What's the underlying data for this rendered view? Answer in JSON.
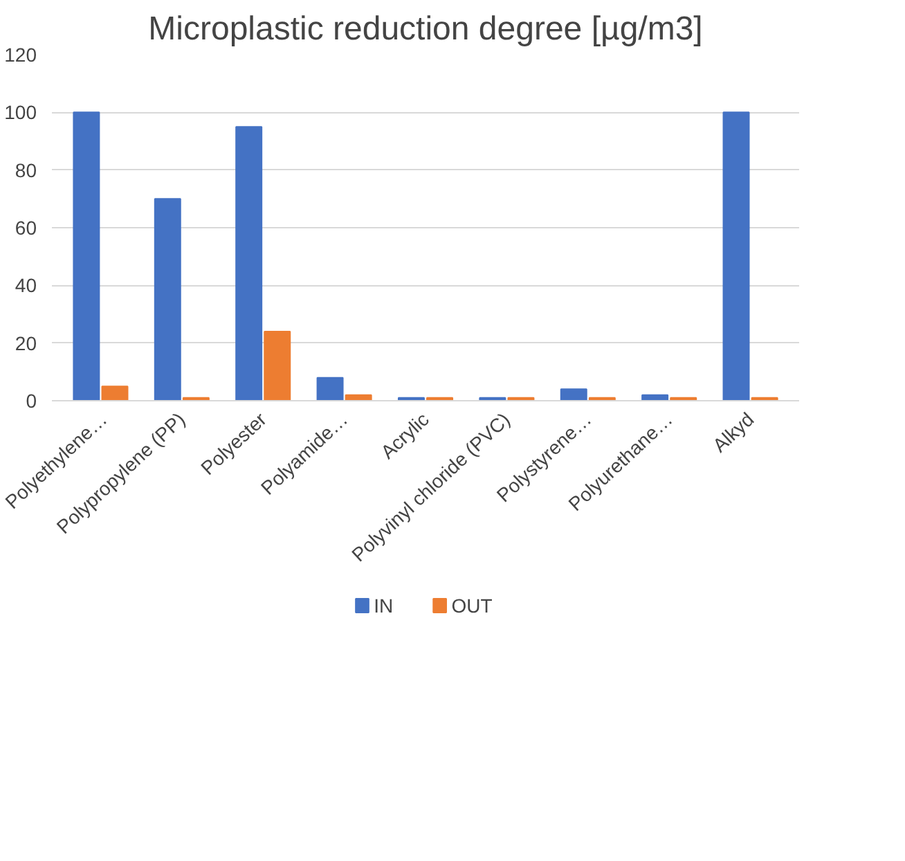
{
  "chart_data": {
    "type": "bar",
    "title": "Microplastic reduction degree [µg/m3]",
    "categories": [
      "Polyethylene…",
      "Polypropylene (PP)",
      "Polyester",
      "Polyamide…",
      "Acrylic",
      "Polyvinyl chloride (PVC)",
      "Polystyrene…",
      "Polyurethane…",
      "Alkyd"
    ],
    "series": [
      {
        "name": "IN",
        "color": "#4472c4",
        "values": [
          100,
          70,
          95,
          8,
          1,
          1,
          4,
          2,
          100
        ]
      },
      {
        "name": "OUT",
        "color": "#ed7d31",
        "values": [
          5,
          1,
          24,
          2,
          1,
          1,
          1,
          1,
          1
        ]
      }
    ],
    "ylim": [
      0,
      120
    ],
    "yticks": [
      0,
      20,
      40,
      60,
      80,
      100,
      120
    ],
    "grid": "y",
    "legend": "bottom"
  }
}
